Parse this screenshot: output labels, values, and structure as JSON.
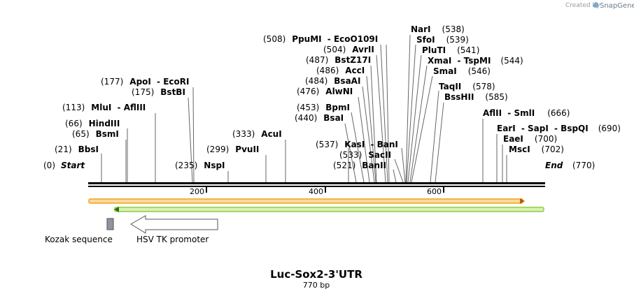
{
  "branding": {
    "prefix": "Created by",
    "name": "SnapGene"
  },
  "map_title": "Luc-Sox2-3'UTR",
  "map_length": "770 bp",
  "sequence": {
    "start_pos": "(0)",
    "start_label": "Start",
    "end_label": "End",
    "end_pos": "(770)",
    "total_bp": 770
  },
  "ruler": [
    200,
    400,
    600
  ],
  "sites": [
    {
      "pos": "(0)",
      "names": []
    },
    {
      "pos": "(21)",
      "names": [
        "BbsI"
      ],
      "bp": 21
    },
    {
      "pos": "(65)",
      "names": [
        "BsmI"
      ],
      "bp": 65
    },
    {
      "pos": "(66)",
      "names": [
        "HindIII"
      ],
      "bp": 66
    },
    {
      "pos": "(113)",
      "names": [
        "MluI",
        "AflIII"
      ],
      "bp": 113
    },
    {
      "pos": "(175)",
      "names": [
        "BstBI"
      ],
      "bp": 175
    },
    {
      "pos": "(177)",
      "names": [
        "ApoI",
        "EcoRI"
      ],
      "bp": 177
    },
    {
      "pos": "(235)",
      "names": [
        "NspI"
      ],
      "bp": 235
    },
    {
      "pos": "(299)",
      "names": [
        "PvuII"
      ],
      "bp": 299
    },
    {
      "pos": "(333)",
      "names": [
        "AcuI"
      ],
      "bp": 333
    },
    {
      "pos": "(440)",
      "names": [
        "BsaI"
      ],
      "bp": 440
    },
    {
      "pos": "(453)",
      "names": [
        "BpmI"
      ],
      "bp": 453
    },
    {
      "pos": "(476)",
      "names": [
        "AlwNI"
      ],
      "bp": 476
    },
    {
      "pos": "(484)",
      "names": [
        "BsaAI"
      ],
      "bp": 484
    },
    {
      "pos": "(486)",
      "names": [
        "AccI"
      ],
      "bp": 486
    },
    {
      "pos": "(487)",
      "names": [
        "BstZ17I"
      ],
      "bp": 487
    },
    {
      "pos": "(504)",
      "names": [
        "AvrII"
      ],
      "bp": 504
    },
    {
      "pos": "(508)",
      "names": [
        "PpuMI",
        "EcoO109I"
      ],
      "bp": 508
    },
    {
      "pos": "(521)",
      "names": [
        "BanII"
      ],
      "bp": 521
    },
    {
      "pos": "(533)",
      "names": [
        "SacII"
      ],
      "bp": 533
    },
    {
      "pos": "(537)",
      "names": [
        "KasI",
        "BanI"
      ],
      "bp": 537
    },
    {
      "pos": "(538)",
      "names": [
        "NarI"
      ],
      "bp": 538
    },
    {
      "pos": "(539)",
      "names": [
        "SfoI"
      ],
      "bp": 539
    },
    {
      "pos": "(541)",
      "names": [
        "PluTI"
      ],
      "bp": 541
    },
    {
      "pos": "(544)",
      "names": [
        "XmaI",
        "TspMI"
      ],
      "bp": 544
    },
    {
      "pos": "(546)",
      "names": [
        "SmaI"
      ],
      "bp": 546
    },
    {
      "pos": "(578)",
      "names": [
        "TaqII"
      ],
      "bp": 578
    },
    {
      "pos": "(585)",
      "names": [
        "BssHII"
      ],
      "bp": 585
    },
    {
      "pos": "(666)",
      "names": [
        "AflII",
        "SmlI"
      ],
      "bp": 666
    },
    {
      "pos": "(690)",
      "names": [
        "EarI",
        "SapI",
        "BspQI"
      ],
      "bp": 690
    },
    {
      "pos": "(700)",
      "names": [
        "EaeI"
      ],
      "bp": 700
    },
    {
      "pos": "(702)",
      "names": [
        "MscI"
      ],
      "bp": 702
    }
  ],
  "features": [
    {
      "name": "Kozak sequence",
      "color": "#8e959c"
    },
    {
      "name": "HSV TK promoter",
      "color": "#ffffff"
    }
  ],
  "colors": {
    "orange_bar": "#f3a21b",
    "orange_fill": "#f6d9a0",
    "green_bar": "#8ecf3a",
    "green_fill": "#d9f0b8"
  }
}
